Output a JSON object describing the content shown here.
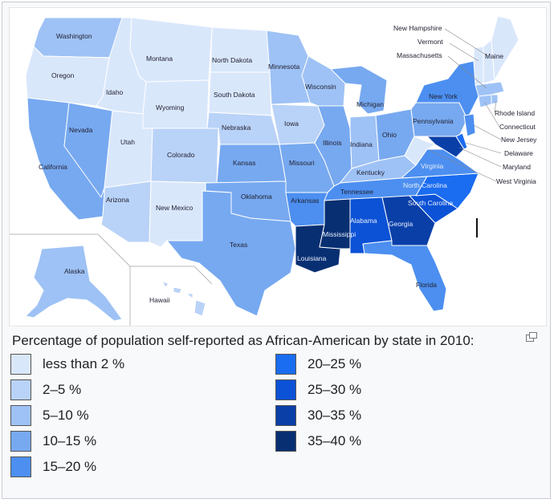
{
  "colors": {
    "c0": "#d9e7fb",
    "c1": "#b9d2f7",
    "c2": "#9ec2f5",
    "c3": "#77a9f0",
    "c4": "#4c8ff0",
    "c5": "#1a6cf0",
    "c6": "#0b52d6",
    "c7": "#0a3fa8",
    "c8": "#082f72"
  },
  "map": {
    "states": {
      "washington": "Washington",
      "oregon": "Oregon",
      "california": "California",
      "idaho": "Idaho",
      "nevada": "Nevada",
      "montana": "Montana",
      "wyoming": "Wyoming",
      "utah": "Utah",
      "arizona": "Arizona",
      "colorado": "Colorado",
      "new_mexico": "New Mexico",
      "north_dakota": "North Dakota",
      "south_dakota": "South Dakota",
      "nebraska": "Nebraska",
      "kansas": "Kansas",
      "oklahoma": "Oklahoma",
      "texas": "Texas",
      "minnesota": "Minnesota",
      "iowa": "Iowa",
      "missouri": "Missouri",
      "arkansas": "Arkansas",
      "louisiana": "Louisiana",
      "wisconsin": "Wisconsin",
      "illinois": "Illinois",
      "michigan": "Michigan",
      "indiana": "Indiana",
      "ohio": "Ohio",
      "kentucky": "Kentucky",
      "tennessee": "Tennessee",
      "mississippi": "Mississippi",
      "alabama": "Alabama",
      "georgia": "Georgia",
      "florida": "Florida",
      "south_carolina": "South Carolina",
      "north_carolina": "North Carolina",
      "virginia": "Virginia",
      "west_virginia": "West Virginia",
      "pennsylvania": "Pennsylvania",
      "new_york": "New York",
      "maryland": "Maryland",
      "delaware": "Delaware",
      "new_jersey": "New Jersey",
      "connecticut": "Connecticut",
      "rhode_island": "Rhode Island",
      "massachusetts": "Massachusetts",
      "vermont": "Vermont",
      "new_hampshire": "New Hampshire",
      "maine": "Maine",
      "alaska": "Alaska",
      "hawaii": "Hawaii"
    }
  },
  "caption": "Percentage of population self-reported as African-American by state in 2010:",
  "legend": [
    {
      "label": "less than 2 %",
      "color": "#d9e7fb"
    },
    {
      "label": "2–5 %",
      "color": "#b9d2f7"
    },
    {
      "label": "5–10 %",
      "color": "#9ec2f5"
    },
    {
      "label": "10–15 %",
      "color": "#77a9f0"
    },
    {
      "label": "15–20 %",
      "color": "#4c8ff0"
    },
    {
      "label": "20–25 %",
      "color": "#1a6cf0"
    },
    {
      "label": "25–30 %",
      "color": "#0b52d6"
    },
    {
      "label": "30–35 %",
      "color": "#0a3fa8"
    },
    {
      "label": "35–40 %",
      "color": "#082f72"
    }
  ]
}
